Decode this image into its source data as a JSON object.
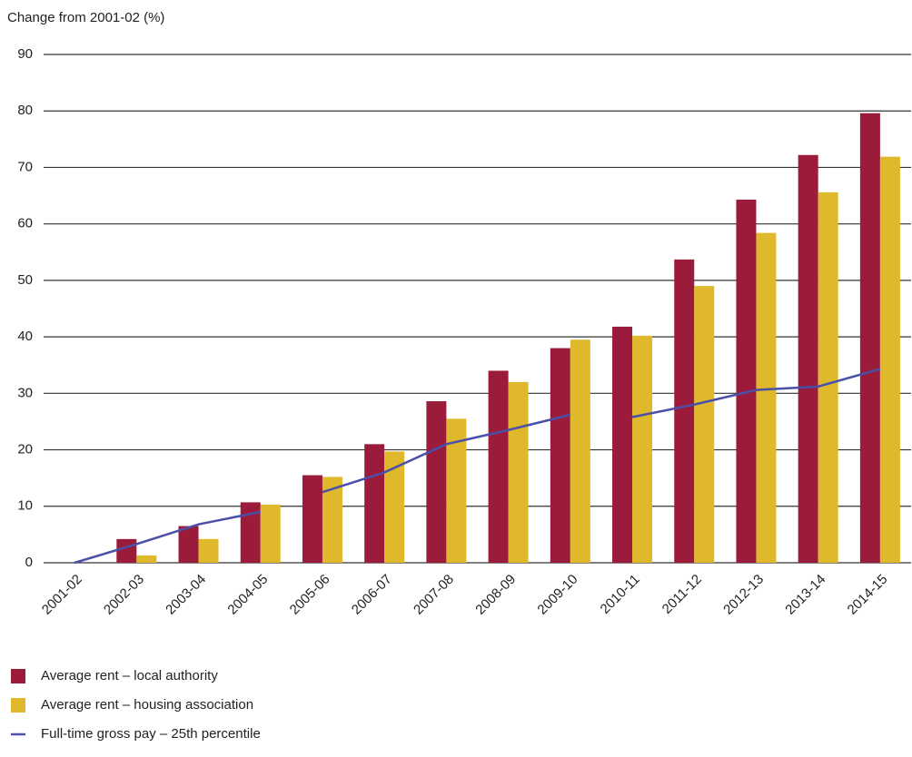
{
  "chart_data": {
    "type": "bar",
    "y_axis_label": "Change from 2001-02 (%)",
    "categories": [
      "2001-02",
      "2002-03",
      "2003-04",
      "2004-05",
      "2005-06",
      "2006-07",
      "2007-08",
      "2008-09",
      "2009-10",
      "2010-11",
      "2011-12",
      "2012-13",
      "2013-14",
      "2014-15"
    ],
    "series": [
      {
        "name": "Average rent – local authority",
        "color": "#9b1b3a",
        "type": "bar",
        "values": [
          0,
          4.2,
          6.5,
          10.7,
          15.5,
          21,
          28.6,
          34,
          38,
          41.8,
          53.7,
          64.3,
          72.2,
          79.6
        ]
      },
      {
        "name": "Average rent – housing association",
        "color": "#dfb82c",
        "type": "bar",
        "values": [
          0,
          1.3,
          4.2,
          10.3,
          15.2,
          19.7,
          25.5,
          32,
          39.5,
          40.2,
          49,
          58.4,
          65.6,
          71.9
        ]
      },
      {
        "name": "Full-time gross pay – 25th percentile",
        "color": "#4a4fa8",
        "type": "line",
        "values": [
          0,
          3.3,
          6.8,
          9,
          12.5,
          16,
          21,
          23.5,
          26.2,
          25.8,
          28,
          30.6,
          31.2,
          34.3
        ],
        "breaks_after": [
          3,
          8
        ]
      }
    ],
    "ylim": [
      0,
      90
    ],
    "yticks": [
      0,
      10,
      20,
      30,
      40,
      50,
      60,
      70,
      80,
      90
    ],
    "grid": true
  }
}
